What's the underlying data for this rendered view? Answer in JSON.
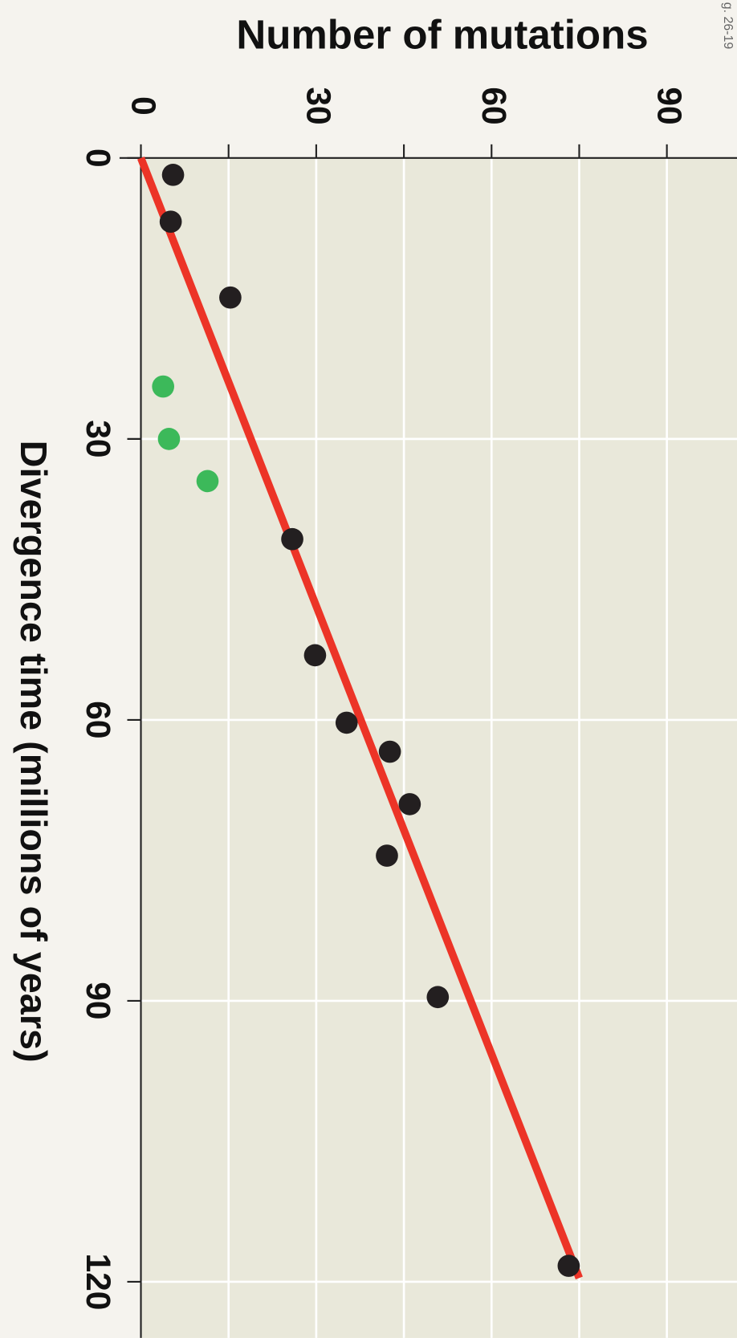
{
  "chart_data": {
    "type": "scatter",
    "title": "Number of mutations",
    "x_label": "Divergence time (millions of years)",
    "note": "g. 26-19",
    "xlim": [
      0,
      126
    ],
    "xticks": [
      0,
      30,
      60,
      90,
      120
    ],
    "ylim": [
      0,
      102
    ],
    "yticks": [
      0,
      30,
      60,
      90
    ],
    "yminor_ticks": [
      15,
      45,
      75
    ],
    "grid": true,
    "series": [
      {
        "style": "scatter",
        "color": "#231f20",
        "x": [
          1.8,
          6.8,
          14.9,
          40.7,
          53.1,
          60.3,
          63.4,
          69.0,
          74.5,
          89.6,
          118.3
        ],
        "values": [
          5.5,
          5.1,
          15.3,
          25.9,
          29.8,
          35.2,
          42.6,
          46.0,
          42.1,
          50.8,
          73.2
        ]
      },
      {
        "style": "scatter",
        "color": "#3cb95a",
        "x": [
          24.4,
          30.0,
          34.5
        ],
        "values": [
          3.8,
          4.8,
          11.4
        ]
      },
      {
        "style": "line",
        "color": "#ec3427",
        "x": [
          0,
          119.6
        ],
        "values": [
          0,
          75
        ]
      }
    ]
  }
}
